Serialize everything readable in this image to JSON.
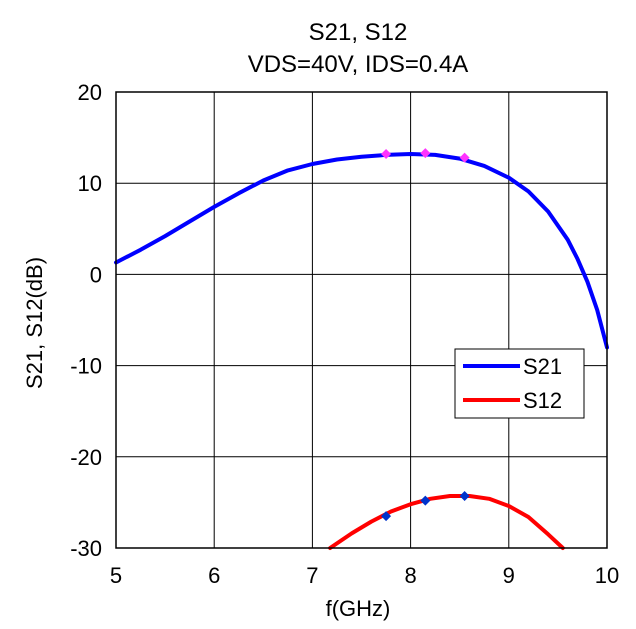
{
  "chart_data": {
    "type": "line",
    "title": "S21, S12",
    "subtitle": "VDS=40V, IDS=0.4A",
    "xlabel": "f(GHz)",
    "ylabel": "S21, S12(dB)",
    "xlim": [
      5,
      10
    ],
    "ylim": [
      -30,
      20
    ],
    "xticks": [
      5,
      6,
      7,
      8,
      9,
      10
    ],
    "yticks": [
      20,
      10,
      0,
      -10,
      -20,
      -30
    ],
    "grid": true,
    "legend": "right",
    "series": [
      {
        "name": "S21",
        "color": "#0000ff",
        "x": [
          5.0,
          5.25,
          5.5,
          5.75,
          6.0,
          6.25,
          6.5,
          6.75,
          7.0,
          7.25,
          7.5,
          7.75,
          8.0,
          8.25,
          8.5,
          8.75,
          9.0,
          9.2,
          9.4,
          9.6,
          9.7,
          9.8,
          9.9,
          10.0
        ],
        "y": [
          1.3,
          2.7,
          4.2,
          5.8,
          7.4,
          8.9,
          10.3,
          11.4,
          12.1,
          12.6,
          12.9,
          13.1,
          13.2,
          13.1,
          12.7,
          11.9,
          10.6,
          9.1,
          6.9,
          3.8,
          1.7,
          -0.8,
          -3.9,
          -8.0
        ],
        "markers": {
          "color": "#ff33ff",
          "x": [
            7.75,
            8.15,
            8.55
          ],
          "y": [
            13.2,
            13.3,
            12.8
          ]
        }
      },
      {
        "name": "S12",
        "color": "#ff0000",
        "x": [
          7.18,
          7.4,
          7.6,
          7.8,
          8.0,
          8.2,
          8.4,
          8.6,
          8.8,
          9.0,
          9.2,
          9.4,
          9.55
        ],
        "y": [
          -30.1,
          -28.4,
          -27.1,
          -26.0,
          -25.2,
          -24.6,
          -24.3,
          -24.3,
          -24.6,
          -25.4,
          -26.6,
          -28.5,
          -30.1
        ],
        "markers": {
          "color": "#0033cc",
          "x": [
            7.75,
            8.15,
            8.55
          ],
          "y": [
            -26.5,
            -24.8,
            -24.3
          ]
        }
      }
    ]
  }
}
